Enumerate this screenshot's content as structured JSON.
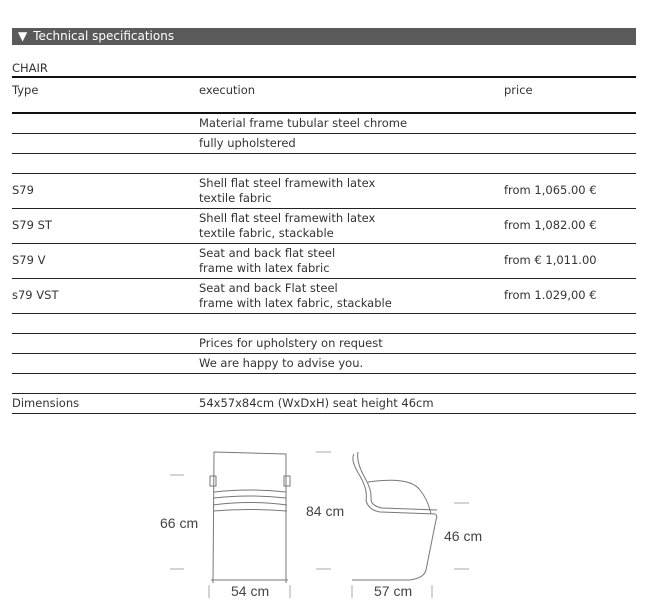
{
  "section": {
    "title": "Technical specifications",
    "icon": "triangle-down-icon"
  },
  "table": {
    "caption": "CHAIR",
    "headers": [
      "Type",
      "execution",
      "price"
    ],
    "rows": [
      {
        "type": "",
        "execution": [
          "Material frame tubular steel chrome"
        ],
        "price": ""
      },
      {
        "type": "",
        "execution": [
          "fully upholstered"
        ],
        "price": ""
      },
      {
        "type": "",
        "execution": [],
        "price": ""
      },
      {
        "type": "S79",
        "execution": [
          "Shell flat steel framewith latex",
          "textile fabric"
        ],
        "price": "from 1,065.00 €"
      },
      {
        "type": "S79 ST",
        "execution": [
          "Shell flat steel framewith latex",
          "textile fabric, stackable"
        ],
        "price": "from 1,082.00 €"
      },
      {
        "type": "S79 V",
        "execution": [
          "Seat and back flat steel",
          "frame with latex fabric"
        ],
        "price": "from € 1,011.00"
      },
      {
        "type": "s79 VST",
        "execution": [
          "Seat and back Flat steel",
          "frame with latex fabric, stackable"
        ],
        "price": "from 1.029,00 €"
      },
      {
        "type": "",
        "execution": [],
        "price": ""
      },
      {
        "type": "",
        "execution": [
          "Prices for upholstery on request"
        ],
        "price": ""
      },
      {
        "type": "",
        "execution": [
          "We are happy to advise you."
        ],
        "price": ""
      },
      {
        "type": "",
        "execution": [],
        "price": ""
      },
      {
        "type": "Dimensions",
        "execution": [
          "54x57x84cm (WxDxH) seat height 46cm"
        ],
        "price": ""
      }
    ]
  },
  "drawing": {
    "front_height": "66 cm",
    "front_width": "54 cm",
    "total_height": "84 cm",
    "side_depth": "57 cm",
    "seat_height": "46 cm"
  }
}
